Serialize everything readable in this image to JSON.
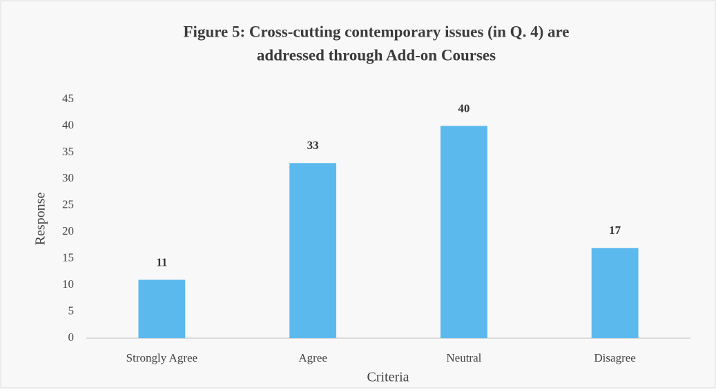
{
  "chart_data": {
    "type": "bar",
    "title": [
      "Figure  5: Cross-cutting contemporary issues (in Q. 4) are",
      "addressed through Add-on Courses"
    ],
    "x_label": "Criteria",
    "y_label": "Response",
    "categories": [
      "Strongly Agree",
      "Agree",
      "Neutral",
      "Disagree"
    ],
    "values": [
      11,
      33,
      40,
      17
    ],
    "color": "#5cb9ee",
    "ylim": [
      0,
      45
    ],
    "yticks": [
      0,
      5,
      10,
      15,
      20,
      25,
      30,
      35,
      40,
      45
    ],
    "grid": false
  }
}
